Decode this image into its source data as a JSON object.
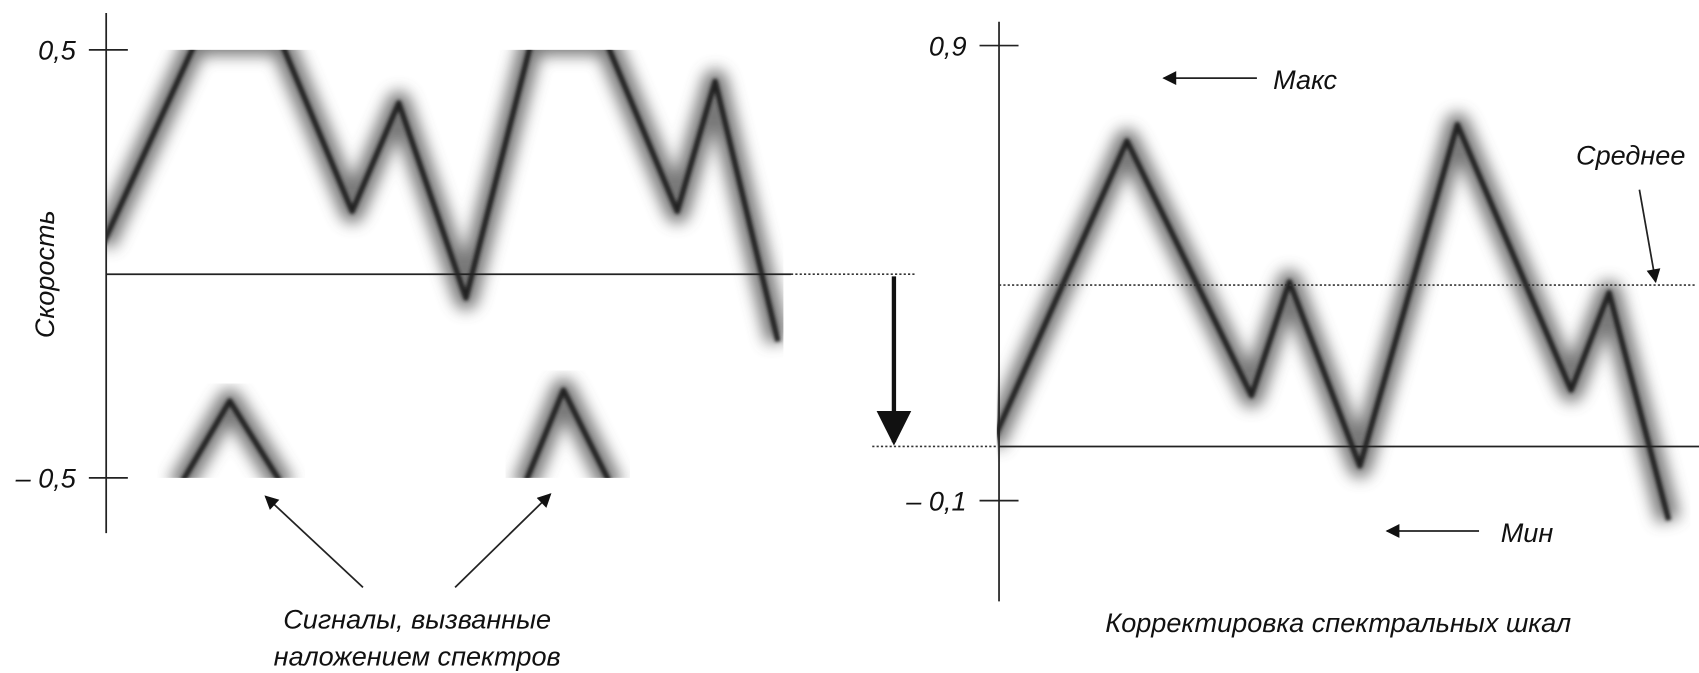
{
  "left": {
    "ytick_top": "0,5",
    "ytick_bottom": "– 0,5",
    "axis_label": "Скорость",
    "caption": [
      "Сигналы, вызванные",
      "наложением спектров"
    ]
  },
  "right": {
    "ytick_top": "0,9",
    "ytick_bottom": "– 0,1",
    "max_label": "Макс",
    "mean_label": "Среднее",
    "min_label": "Мин",
    "caption": "Корректировка спектральных шкал"
  }
}
